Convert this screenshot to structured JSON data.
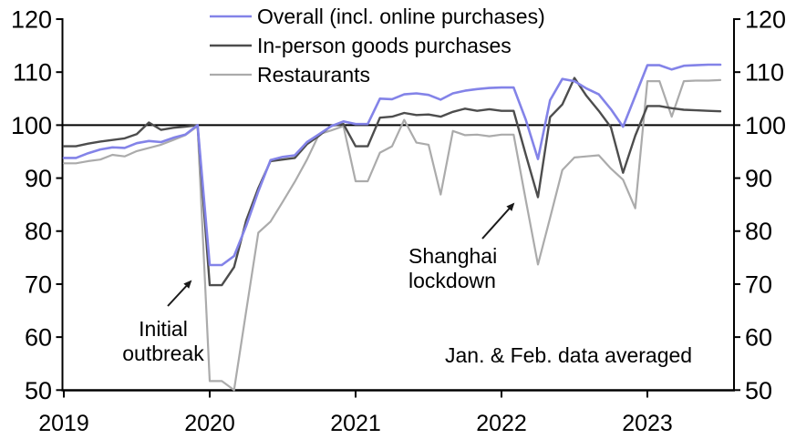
{
  "chart_data": {
    "type": "line",
    "title": "",
    "x_unit": "decimal_year",
    "note": "Jan. & Feb. data averaged",
    "baseline": 100,
    "ylim": [
      50,
      120
    ],
    "xlim": [
      2019.0,
      2023.583
    ],
    "y_ticks": [
      120,
      110,
      100,
      90,
      80,
      70,
      60,
      50
    ],
    "x_ticks": [
      2019,
      2020,
      2021,
      2022,
      2023
    ],
    "grid": false,
    "legend_position": "top-inside",
    "x": [
      2019.0,
      2019.083,
      2019.167,
      2019.25,
      2019.333,
      2019.417,
      2019.5,
      2019.583,
      2019.667,
      2019.75,
      2019.833,
      2019.917,
      2020.0,
      2020.083,
      2020.167,
      2020.25,
      2020.333,
      2020.417,
      2020.5,
      2020.583,
      2020.667,
      2020.75,
      2020.833,
      2020.917,
      2021.0,
      2021.083,
      2021.167,
      2021.25,
      2021.333,
      2021.417,
      2021.5,
      2021.583,
      2021.667,
      2021.75,
      2021.833,
      2021.917,
      2022.0,
      2022.083,
      2022.167,
      2022.25,
      2022.333,
      2022.417,
      2022.5,
      2022.583,
      2022.667,
      2022.75,
      2022.833,
      2022.917,
      2023.0,
      2023.083,
      2023.167,
      2023.25,
      2023.333,
      2023.417,
      2023.5
    ],
    "series": [
      {
        "name": "Overall (incl. online purchases)",
        "color": "#8383e8",
        "width": 2.6,
        "values": [
          93.8,
          93.8,
          94.7,
          95.4,
          95.8,
          95.7,
          96.6,
          97.0,
          96.8,
          97.6,
          98.2,
          100.0,
          73.6,
          73.6,
          75.3,
          81.0,
          87.5,
          93.4,
          94.0,
          94.3,
          96.8,
          98.3,
          99.8,
          100.7,
          100.2,
          100.2,
          105.0,
          104.9,
          105.8,
          106.0,
          105.7,
          104.8,
          106.0,
          106.5,
          106.8,
          107.0,
          107.1,
          107.1,
          101.0,
          93.6,
          104.7,
          108.7,
          108.3,
          106.9,
          105.8,
          103.0,
          99.7,
          105.5,
          111.3,
          111.3,
          110.5,
          111.2,
          111.3,
          111.4,
          111.4
        ]
      },
      {
        "name": "In-person goods purchases",
        "color": "#4d4d4d",
        "width": 2.4,
        "values": [
          96.0,
          96.0,
          96.5,
          96.9,
          97.2,
          97.5,
          98.3,
          100.5,
          99.1,
          99.5,
          99.7,
          100.0,
          69.8,
          69.8,
          73.2,
          82.0,
          88.1,
          93.2,
          93.5,
          93.8,
          96.4,
          98.0,
          99.9,
          100.2,
          96.0,
          96.0,
          101.4,
          101.6,
          102.3,
          101.9,
          102.0,
          101.6,
          102.5,
          103.1,
          102.7,
          103.0,
          102.7,
          102.7,
          94.4,
          86.4,
          101.5,
          103.9,
          108.9,
          105.5,
          102.7,
          99.6,
          91.0,
          98.0,
          103.6,
          103.6,
          103.2,
          102.9,
          102.8,
          102.7,
          102.6
        ]
      },
      {
        "name": "Restaurants",
        "color": "#ababab",
        "width": 2.2,
        "values": [
          92.8,
          92.8,
          93.2,
          93.5,
          94.4,
          94.1,
          95.1,
          95.7,
          96.3,
          97.2,
          98.1,
          99.8,
          51.7,
          51.7,
          50.0,
          64.9,
          79.7,
          81.8,
          85.5,
          89.3,
          93.5,
          98.3,
          99.0,
          99.8,
          89.4,
          89.4,
          94.8,
          96.0,
          101.0,
          96.7,
          96.3,
          86.9,
          98.9,
          98.1,
          98.2,
          97.9,
          98.2,
          98.2,
          85.8,
          73.7,
          82.5,
          91.5,
          93.9,
          94.1,
          94.3,
          91.8,
          89.7,
          84.3,
          108.3,
          108.3,
          101.6,
          108.3,
          108.4,
          108.4,
          108.5
        ]
      }
    ],
    "annotations": {
      "initial_outbreak": {
        "line1": "Initial",
        "line2": "outbreak"
      },
      "shanghai": {
        "line1": "Shanghai",
        "line2": "lockdown"
      }
    }
  }
}
